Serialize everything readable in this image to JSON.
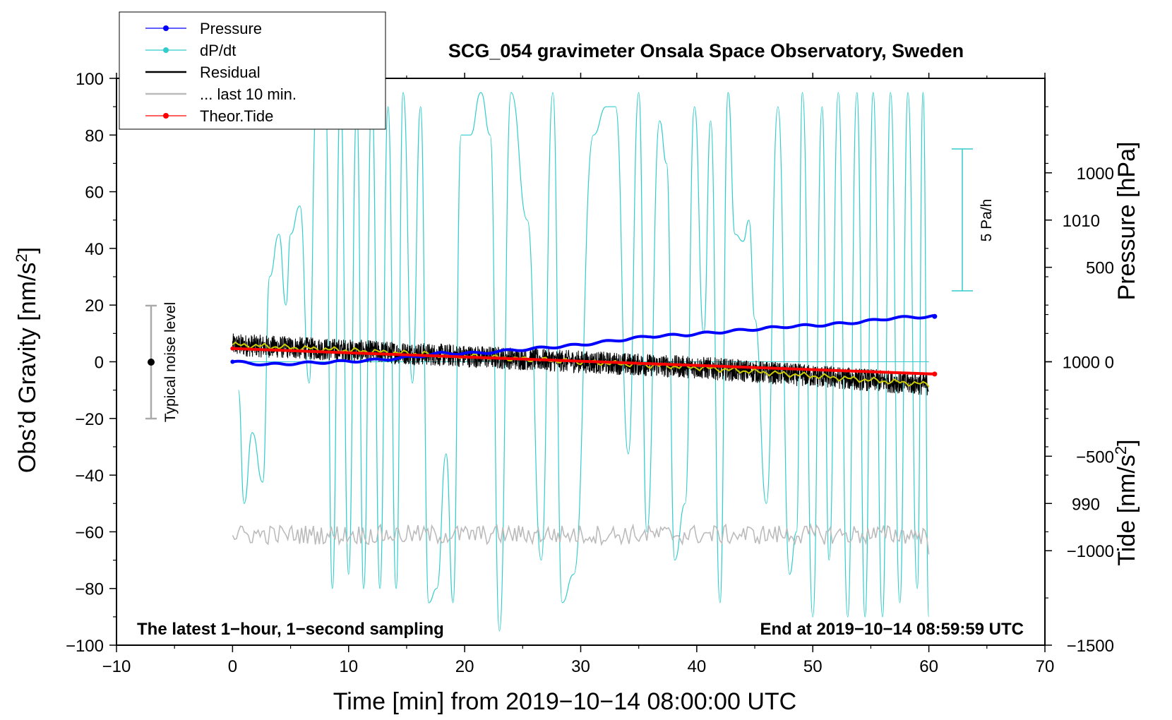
{
  "chart_data": {
    "type": "line",
    "title": "SCG_054 gravimeter Onsala Space Observatory, Sweden",
    "xlabel": "Time [min] from 2019−10−14 08:00:00 UTC",
    "ylabel_left_main": "Obs’d Gravity [nm/s",
    "ylabel_left_sup": "2",
    "ylabel_left_tail": "]",
    "ylabel_right_pressure": "Pressure [hPa]",
    "ylabel_right_tide_main": "Tide [nm/s",
    "ylabel_right_tide_sup": "2",
    "ylabel_right_tide_tail": "]",
    "xlim": [
      -10,
      70
    ],
    "ylim": [
      -100,
      100
    ],
    "pressure_lim": [
      980,
      1020
    ],
    "tide_lim": [
      -1500,
      1500
    ],
    "x_ticks": [
      -10,
      0,
      10,
      20,
      30,
      40,
      50,
      60,
      70
    ],
    "x_tick_labels": [
      "−10",
      "0",
      "10",
      "20",
      "30",
      "40",
      "50",
      "60",
      "70"
    ],
    "y_ticks": [
      -100,
      -80,
      -60,
      -40,
      -20,
      0,
      20,
      40,
      60,
      80,
      100
    ],
    "y_tick_labels": [
      "−100",
      "−80",
      "−60",
      "−40",
      "−20",
      "0",
      "20",
      "40",
      "60",
      "80",
      "100"
    ],
    "pressure_ticks": [
      990,
      1000,
      1010
    ],
    "pressure_tick_labels": [
      "990",
      "1000",
      "1010"
    ],
    "tide_ticks": [
      -1500,
      -1000,
      -500,
      0,
      500,
      1000
    ],
    "tide_tick_labels": [
      "−1500",
      "−1000",
      "−500",
      "0",
      "500",
      "1000"
    ],
    "legend": {
      "placement": "top-left",
      "entries": [
        {
          "label": "Pressure",
          "color": "#0000ff",
          "marker": true
        },
        {
          "label": "dP/dt",
          "color": "#33cccc",
          "marker": true
        },
        {
          "label": "Residual",
          "color": "#000000",
          "marker": false
        },
        {
          "label": "... last 10 min.",
          "color": "#bbbbbb",
          "marker": false
        },
        {
          "label": "Theor.Tide",
          "color": "#ff0000",
          "marker": true
        }
      ]
    },
    "annotations": {
      "bottom_left": "The latest 1−hour, 1−second sampling",
      "bottom_right": "End at 2019−10−14 08:59:59 UTC",
      "noise_label": "Typical noise level",
      "scale_label": "5 Pa/h"
    },
    "noise_bar": {
      "x": -7,
      "center": 0,
      "half_range": 20
    },
    "dpdt_scale": {
      "x": 62.5,
      "center_hpa": 1000,
      "half_range_hpa": 10,
      "zero_hpa": 1000
    },
    "series": [
      {
        "name": "Pressure",
        "unit": "hPa",
        "color": "#0000ff",
        "x": [
          0,
          3,
          6,
          9,
          12,
          15,
          18,
          21,
          24,
          27,
          30,
          33,
          36,
          39,
          42,
          45,
          48,
          51,
          54,
          57,
          60.5
        ],
        "values": [
          1000.0,
          999.8,
          999.9,
          1000.0,
          1000.1,
          1000.3,
          1000.6,
          1000.6,
          1000.8,
          1001.0,
          1001.2,
          1001.5,
          1001.8,
          1001.9,
          1002.1,
          1002.3,
          1002.5,
          1002.6,
          1002.8,
          1003.1,
          1003.2
        ]
      },
      {
        "name": "dP/dt",
        "unit": "hPa (scaled)",
        "color": "#33cccc",
        "x": [
          0.5,
          1,
          1.7,
          2.6,
          3.2,
          4,
          4.6,
          5,
          5.8,
          6.6,
          7.2,
          8,
          8.6,
          9.3,
          10,
          10.7,
          11.3,
          12,
          12.7,
          13.4,
          14.1,
          14.7,
          15.5,
          16.2,
          16.9,
          17.6,
          18.4,
          19,
          19.7,
          20.5,
          21.4,
          22.2,
          23,
          24,
          25.4,
          26.6,
          27.6,
          28.4,
          29.4,
          31.1,
          32.2,
          33,
          34.1,
          35,
          35.7,
          36.8,
          37.4,
          38.1,
          39,
          39.8,
          40.6,
          41.2,
          42,
          42.7,
          43.3,
          44,
          44.5,
          45,
          46,
          47,
          48,
          48.6,
          49.1,
          50,
          50.8,
          51.4,
          52.2,
          53,
          53.8,
          54.5,
          55.2,
          56,
          56.7,
          57.5,
          58.2,
          59,
          59.5,
          60
        ],
        "values": [
          998,
          990,
          995,
          991.5,
          1006,
          1009,
          1004,
          1009,
          1011,
          998.5,
          1018,
          1019,
          984,
          1019,
          985,
          1018,
          984,
          1019,
          984,
          1018,
          984,
          1019,
          998.5,
          1018,
          983,
          984,
          993.5,
          983,
          1016,
          1016,
          1019,
          1016,
          981,
          1019,
          1010,
          986,
          1019,
          983,
          985,
          1016,
          1018,
          1018,
          993.5,
          1019,
          988,
          1017,
          1014,
          986,
          990,
          1018,
          1002,
          1017,
          983,
          1019,
          1009,
          1008.5,
          1010,
          1003,
          990,
          1018,
          985,
          988,
          1019,
          982,
          1018,
          986,
          1019,
          982,
          1019,
          982,
          1019,
          982,
          1019,
          983,
          1019,
          984,
          1019,
          982
        ]
      },
      {
        "name": "Residual",
        "unit": "nm/s2",
        "color": "#000000",
        "x": [
          0,
          10,
          20,
          30,
          40,
          50,
          60
        ],
        "values": [
          6,
          4,
          2,
          0,
          -2,
          -5,
          -8
        ],
        "noise_amplitude": 4
      },
      {
        "name": "Residual (smoothed)",
        "unit": "nm/s2",
        "color": "#cccc00",
        "x": [
          0,
          10,
          20,
          30,
          40,
          50,
          60
        ],
        "values": [
          6,
          4,
          2,
          0,
          -2,
          -5,
          -8
        ]
      },
      {
        "name": "... last 10 min.",
        "unit": "nm/s2",
        "color": "#bbbbbb",
        "x": [
          0,
          60
        ],
        "values": [
          -61,
          -61
        ],
        "noise_amplitude": 3.5
      },
      {
        "name": "Theor.Tide",
        "unit": "nm/s2",
        "color": "#ff0000",
        "x": [
          0,
          60.5
        ],
        "values": [
          70,
          -65
        ]
      }
    ]
  }
}
